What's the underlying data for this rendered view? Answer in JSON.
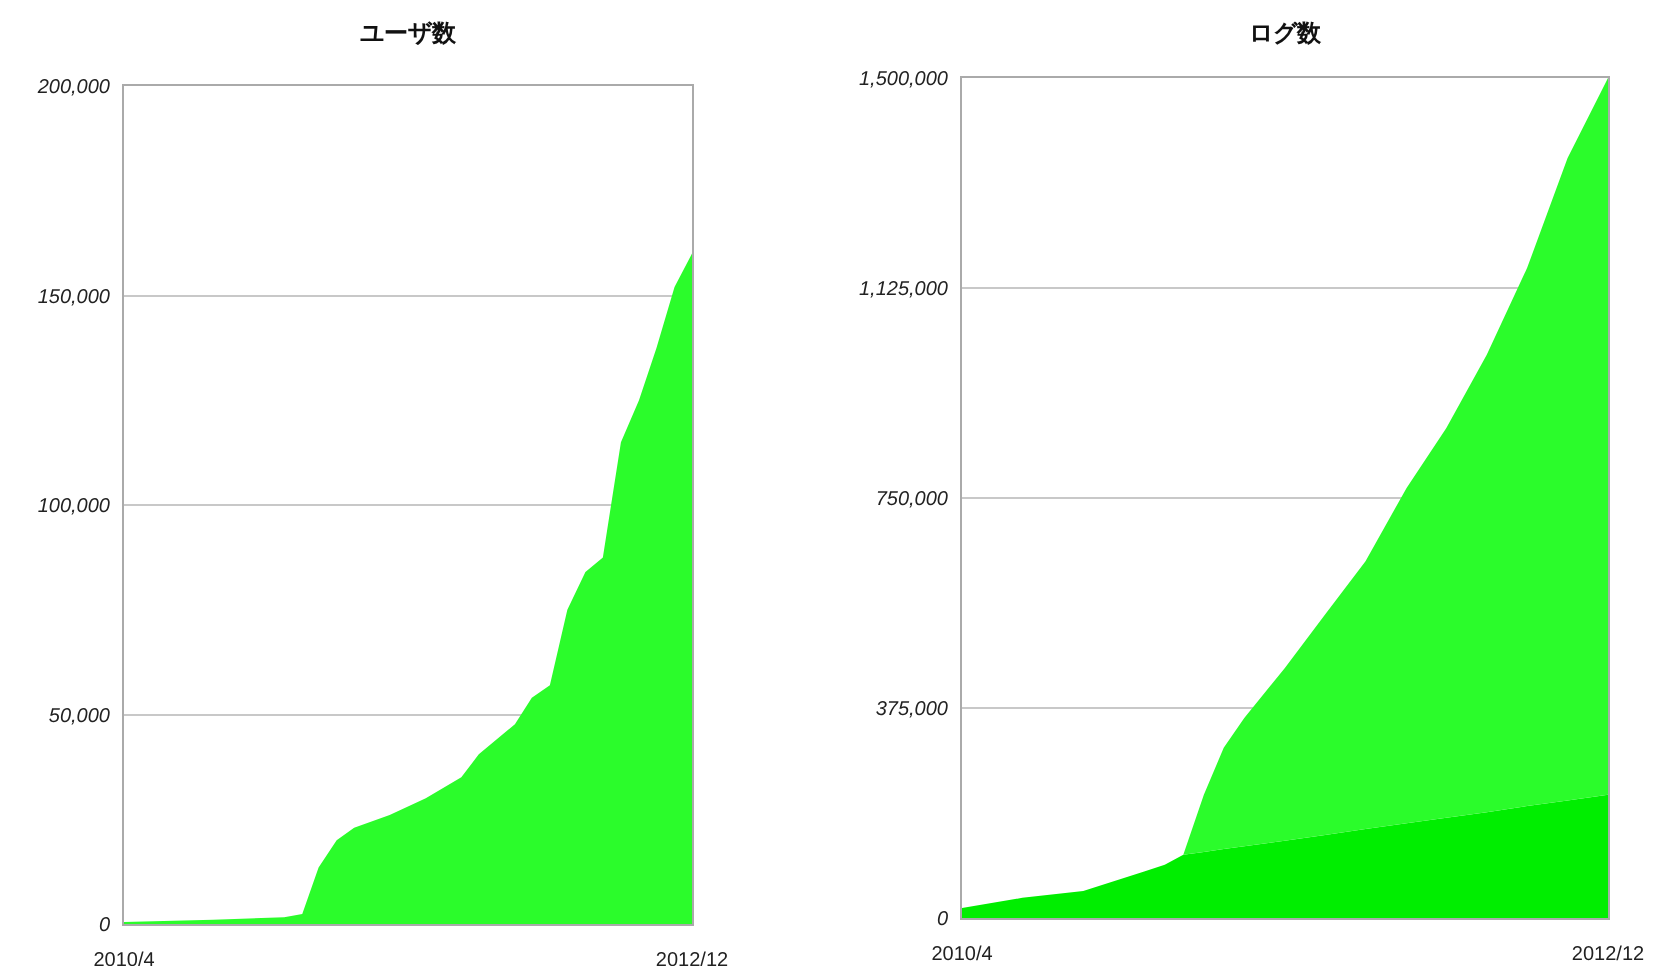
{
  "chart_data": [
    {
      "type": "area",
      "title": "ユーザ数",
      "xlim": [
        "2010-04",
        "2012-12"
      ],
      "xticks": [
        {
          "value": "2010-04",
          "label": "2010/4"
        },
        {
          "value": "2012-12",
          "label": "2012/12"
        }
      ],
      "ylim": [
        0,
        200000
      ],
      "yticks": [
        0,
        {
          "value": 50000,
          "label": "50,000"
        },
        {
          "value": 100000,
          "label": "100,000"
        },
        {
          "value": 150000,
          "label": "150,000"
        },
        {
          "value": 200000,
          "label": "200,000"
        }
      ],
      "grid": "y",
      "series": [
        {
          "color": "#2bfc2b",
          "x": [
            "2010-04",
            "2010-09",
            "2011-01",
            "2011-02",
            "2011-03",
            "2011-04",
            "2011-05",
            "2011-07",
            "2011-09",
            "2011-11",
            "2011-12",
            "2012-02",
            "2012-03",
            "2012-04",
            "2012-05",
            "2012-06",
            "2012-07",
            "2012-08",
            "2012-09",
            "2012-10",
            "2012-11",
            "2012-12"
          ],
          "values": [
            500,
            1000,
            1600,
            2400,
            13500,
            20000,
            23000,
            26000,
            30000,
            35000,
            40500,
            47700,
            54000,
            57000,
            75000,
            84000,
            87500,
            115000,
            125000,
            137500,
            152000,
            160000
          ]
        }
      ]
    },
    {
      "type": "area",
      "title": "ログ数",
      "stacked": true,
      "xlim": [
        "2010-04",
        "2012-12"
      ],
      "xticks": [
        {
          "value": "2010-04",
          "label": "2010/4"
        },
        {
          "value": "2012-12",
          "label": "2012/12"
        }
      ],
      "ylim": [
        0,
        1500000
      ],
      "yticks": [
        0,
        {
          "value": 375000,
          "label": "375,000"
        },
        {
          "value": 750000,
          "label": "750,000"
        },
        {
          "value": 1125000,
          "label": "1,125,000"
        },
        {
          "value": 1500000,
          "label": "1,500,000"
        }
      ],
      "grid": "y",
      "series": [
        {
          "color": "#00ee00",
          "x": [
            "2010-04",
            "2010-07",
            "2010-10",
            "2011-01",
            "2011-02",
            "2011-03",
            "2011-04",
            "2011-05",
            "2011-06",
            "2011-08",
            "2011-10",
            "2011-12",
            "2012-02",
            "2012-04",
            "2012-06",
            "2012-08",
            "2012-10",
            "2012-12"
          ],
          "values": [
            18000,
            36000,
            48000,
            83000,
            95000,
            113000,
            118000,
            123000,
            128000,
            138000,
            148000,
            159000,
            169000,
            179000,
            189000,
            200000,
            210000,
            220000
          ]
        },
        {
          "color": "#2bfc2b",
          "x": [
            "2010-04",
            "2010-07",
            "2010-10",
            "2011-01",
            "2011-02",
            "2011-03",
            "2011-04",
            "2011-05",
            "2011-06",
            "2011-08",
            "2011-10",
            "2011-12",
            "2012-02",
            "2012-04",
            "2012-06",
            "2012-08",
            "2012-10",
            "2012-12"
          ],
          "values": [
            0,
            0,
            0,
            0,
            0,
            0,
            102000,
            181000,
            229000,
            308000,
            394000,
            478000,
            599000,
            696000,
            817000,
            961000,
            1147000,
            1280000
          ]
        }
      ]
    }
  ]
}
